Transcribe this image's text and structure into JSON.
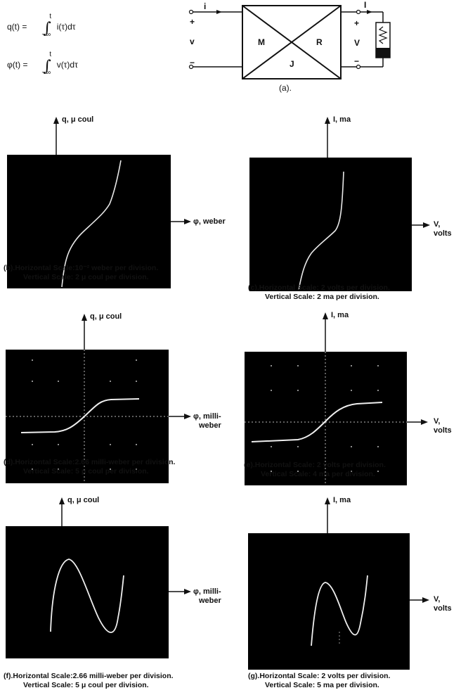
{
  "equations": {
    "q": {
      "lhs": "q(t) =",
      "integral": "∫",
      "upper": "t",
      "lower": "−∞",
      "integrand": "i(τ)dτ"
    },
    "phi": {
      "lhs": "φ(t) =",
      "integral": "∫",
      "upper": "t",
      "lower": "−∞",
      "integrand": "v(τ)dτ"
    }
  },
  "circuit": {
    "input_current": "i",
    "input_plus": "+",
    "input_voltage": "v",
    "input_minus": "−",
    "output_current": "I",
    "output_plus": "+",
    "output_voltage": "V",
    "output_minus": "−",
    "box_top": "",
    "box_left": "M",
    "box_right": "R",
    "box_bottom": "J",
    "caption": "(a)."
  },
  "panels": [
    {
      "id": "b",
      "y_label": "q, μ coul",
      "x_label_1": "φ, weber",
      "x_label_2": "",
      "caption_1": "(b).Horizontal Scale:10⁻² weber per division.",
      "caption_2": "Vertical  Scale: 2 μ coul per division."
    },
    {
      "id": "c",
      "y_label": "I, ma",
      "x_label_1": "V,",
      "x_label_2": "volts",
      "caption_1": "(c).Horizontal Scale: 2 volts per division.",
      "caption_2": "Vertical  Scale: 2 ma per division."
    },
    {
      "id": "d",
      "y_label": "q, μ coul",
      "x_label_1": "φ, milli-",
      "x_label_2": "weber",
      "caption_1": "(d).Horizontal Scale:2.66 milli-weber per division.",
      "caption_2": "Vertical  Scale: 5 μ coul per division."
    },
    {
      "id": "e",
      "y_label": "I, ma",
      "x_label_1": "V,",
      "x_label_2": "volts",
      "caption_1": "(e).Horizontal Scale: 2 volts per division.",
      "caption_2": "Vertical  Scale: 4 ma per division."
    },
    {
      "id": "f",
      "y_label": "q, μ coul",
      "x_label_1": "φ, milli-",
      "x_label_2": "weber",
      "caption_1": "(f).Horizontal Scale:2.66 milli-weber per division.",
      "caption_2": "Vertical  Scale: 5 μ coul per division."
    },
    {
      "id": "g",
      "y_label": "I, ma",
      "x_label_1": "V,",
      "x_label_2": "volts",
      "caption_1": "(g).Horizontal Scale: 2 volts per division.",
      "caption_2": "Vertical  Scale: 5 ma per division."
    }
  ]
}
